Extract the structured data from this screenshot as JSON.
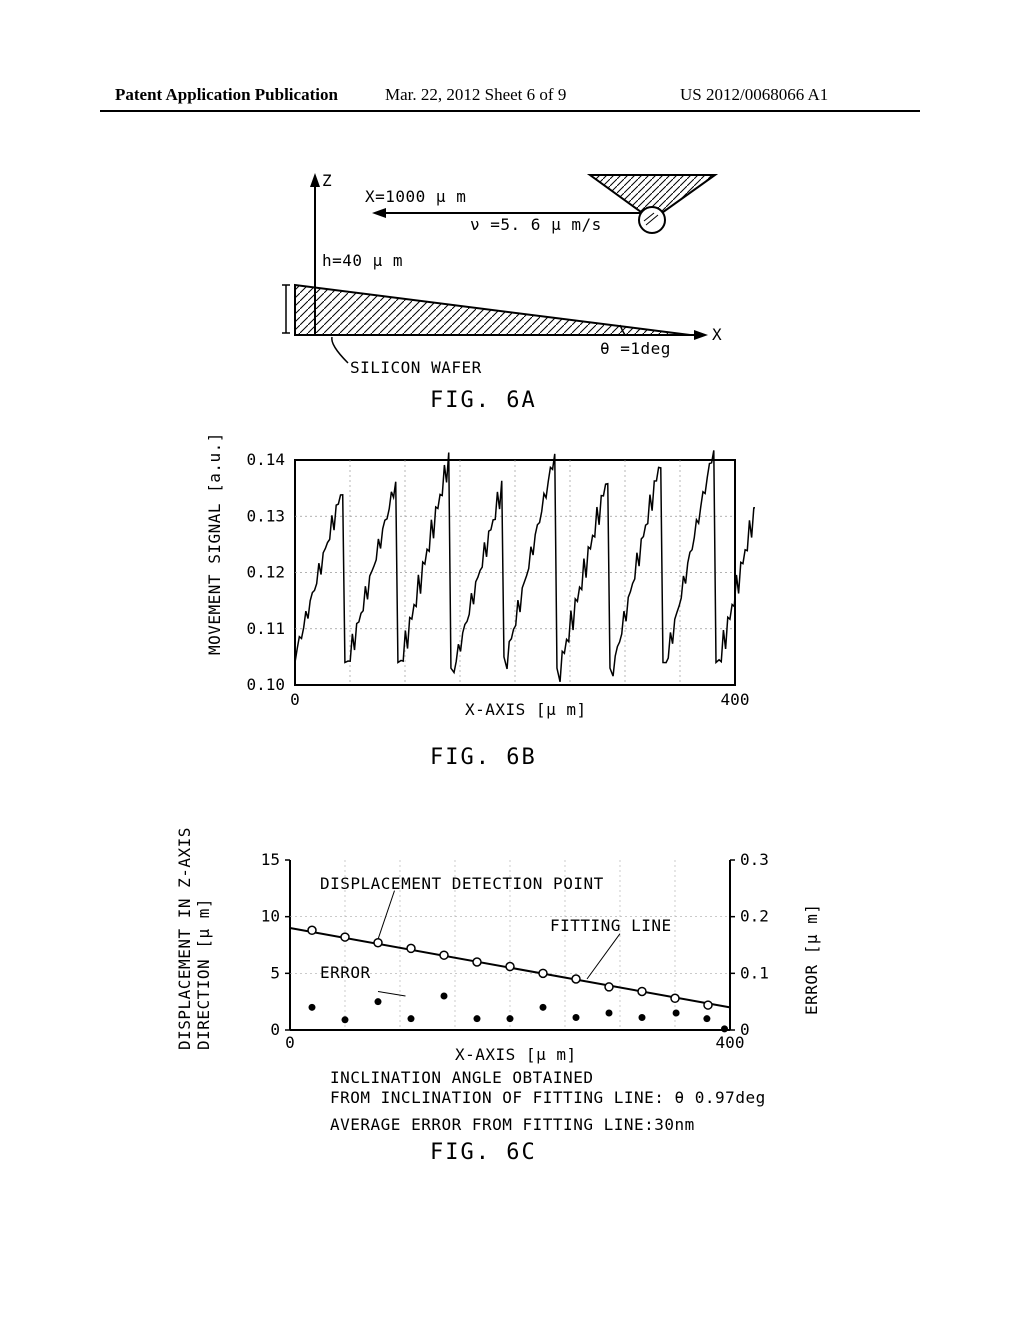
{
  "header": {
    "left": "Patent Application Publication",
    "center": "Mar. 22, 2012  Sheet 6 of 9",
    "right": "US 2012/0068066 A1"
  },
  "fig6a": {
    "label": "FIG. 6A",
    "z_axis": "Z",
    "x_axis": "X",
    "x_label": "X=1000 μ m",
    "v_label": "ν =5. 6 μ m/s",
    "h_label": "h=40 μ m",
    "theta_label": "θ =1deg",
    "wafer_label": "SILICON WAFER"
  },
  "fig6b": {
    "label": "FIG. 6B",
    "ylabel": "MOVEMENT SIGNAL [a.u.]",
    "xlabel": "X-AXIS [μ m]",
    "yticks": [
      "0.10",
      "0.11",
      "0.12",
      "0.13",
      "0.14"
    ],
    "xmin": "0",
    "xmax": "400",
    "chart": {
      "cycles": 8,
      "y_range": [
        0.1,
        0.14
      ],
      "x_range": [
        0,
        400
      ],
      "peak_heights": [
        0.135,
        0.136,
        0.14,
        0.135,
        0.141,
        0.137,
        0.14,
        0.142,
        0.14
      ],
      "trough_heights": [
        0.105,
        0.104,
        0.104,
        0.103,
        0.105,
        0.103,
        0.103,
        0.104,
        0.104
      ],
      "color": "#000000",
      "grid_color": "#999999"
    }
  },
  "fig6c": {
    "label": "FIG. 6C",
    "ylabel": "DISPLACEMENT IN Z-AXIS\nDIRECTION [μ m]",
    "ylabel2": "ERROR [μ m]",
    "xlabel": "X-AXIS [μ m]",
    "yticks_left": [
      "0",
      "5",
      "10",
      "15"
    ],
    "yticks_right": [
      "0",
      "0.1",
      "0.2",
      "0.3"
    ],
    "xmin": "0",
    "xmax": "400",
    "detection_label": "DISPLACEMENT DETECTION POINT",
    "fitting_label": "FITTING LINE",
    "error_label": "ERROR",
    "note1": "INCLINATION ANGLE OBTAINED",
    "note2": "FROM INCLINATION OF FITTING LINE: θ 0.97deg",
    "note3": "AVERAGE ERROR FROM FITTING LINE:30nm",
    "chart": {
      "line_start": [
        0,
        9.0
      ],
      "line_end": [
        400,
        2.0
      ],
      "detection_points_x": [
        20,
        50,
        80,
        110,
        140,
        170,
        200,
        230,
        260,
        290,
        320,
        350,
        380
      ],
      "detection_points_y": [
        8.8,
        8.2,
        7.7,
        7.2,
        6.6,
        6.0,
        5.6,
        5.0,
        4.5,
        3.8,
        3.4,
        2.8,
        2.2
      ],
      "error_points_x": [
        20,
        50,
        80,
        110,
        140,
        170,
        200,
        230,
        260,
        290,
        320,
        351,
        379,
        395
      ],
      "error_points_y_right": [
        0.04,
        0.018,
        0.05,
        0.02,
        0.06,
        0.02,
        0.02,
        0.04,
        0.022,
        0.03,
        0.022,
        0.03,
        0.02,
        0.002
      ],
      "color_line": "#000000",
      "color_open": "#000000",
      "color_fill": "#000000"
    }
  }
}
